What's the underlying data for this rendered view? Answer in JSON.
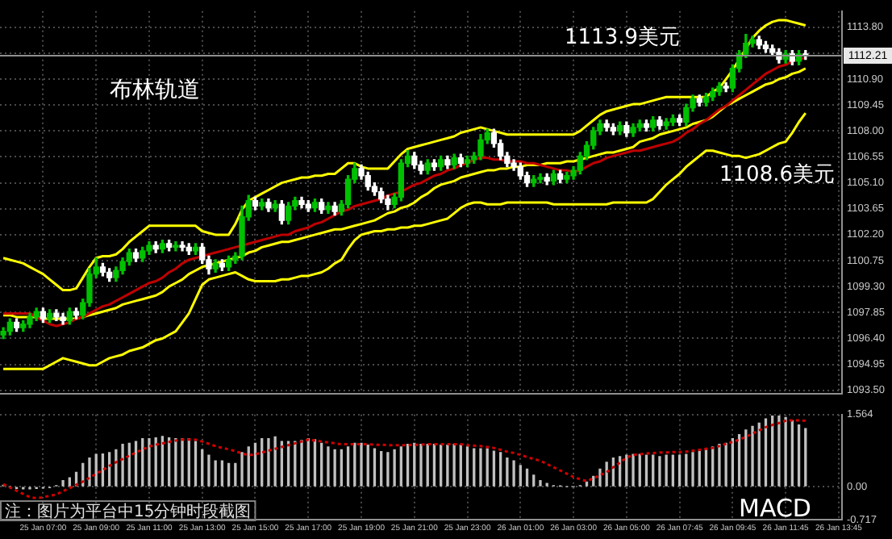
{
  "chart_data": [
    {
      "type": "candlestick",
      "tick_labels": "y",
      "grid": true,
      "categories": [
        null,
        null,
        null,
        null,
        null,
        null,
        null,
        null,
        null,
        null,
        null,
        null,
        null,
        null,
        null,
        null,
        null,
        null,
        null,
        null,
        null,
        null,
        null,
        null,
        null,
        null,
        null,
        null,
        null,
        null,
        null,
        null,
        null,
        null,
        null,
        null,
        null,
        null,
        null,
        null,
        null,
        null,
        null,
        null,
        null,
        null,
        null,
        null,
        null,
        null,
        null,
        null,
        null,
        null,
        null,
        null,
        null,
        null,
        null,
        null,
        null,
        null,
        null,
        null,
        null,
        null,
        null,
        null,
        null,
        null,
        null,
        null,
        null,
        null,
        null,
        null,
        null,
        null,
        null,
        null,
        null,
        null,
        null,
        null,
        null,
        null,
        null,
        null,
        null,
        null,
        null,
        null,
        null,
        null,
        null,
        null,
        null,
        null,
        null,
        null,
        null,
        null,
        null,
        null,
        null,
        null,
        null,
        null,
        null,
        null,
        null,
        null,
        null,
        null,
        null,
        null,
        null,
        null,
        null,
        null,
        null,
        null,
        null,
        null,
        null,
        null,
        null
      ],
      "ohlc": [
        [
          1096.6,
          1097.0,
          1096.4,
          1096.8
        ],
        [
          1096.8,
          1097.5,
          1096.6,
          1097.3
        ],
        [
          1097.3,
          1097.5,
          1096.8,
          1097.0
        ],
        [
          1097.0,
          1097.4,
          1096.8,
          1097.2
        ],
        [
          1097.2,
          1097.8,
          1097.0,
          1097.6
        ],
        [
          1097.6,
          1098.1,
          1097.4,
          1097.9
        ],
        [
          1097.9,
          1098.1,
          1097.3,
          1097.5
        ],
        [
          1097.5,
          1098.0,
          1097.3,
          1097.8
        ],
        [
          1097.8,
          1098.0,
          1097.4,
          1097.6
        ],
        [
          1097.6,
          1097.8,
          1097.2,
          1097.4
        ],
        [
          1097.4,
          1098.1,
          1097.2,
          1097.9
        ],
        [
          1097.9,
          1098.1,
          1097.5,
          1097.7
        ],
        [
          1097.7,
          1098.6,
          1097.5,
          1098.4
        ],
        [
          1098.4,
          1100.3,
          1098.2,
          1100.0
        ],
        [
          1100.0,
          1100.9,
          1099.8,
          1100.4
        ],
        [
          1100.4,
          1100.6,
          1099.9,
          1100.1
        ],
        [
          1100.1,
          1100.3,
          1099.6,
          1099.8
        ],
        [
          1099.8,
          1100.4,
          1099.6,
          1100.2
        ],
        [
          1100.2,
          1100.9,
          1100.0,
          1100.7
        ],
        [
          1100.7,
          1101.4,
          1100.5,
          1101.2
        ],
        [
          1101.2,
          1101.4,
          1100.7,
          1100.9
        ],
        [
          1100.9,
          1101.5,
          1100.7,
          1101.3
        ],
        [
          1101.3,
          1101.8,
          1101.1,
          1101.6
        ],
        [
          1101.6,
          1101.8,
          1101.2,
          1101.4
        ],
        [
          1101.4,
          1101.9,
          1101.2,
          1101.7
        ],
        [
          1101.7,
          1101.9,
          1101.3,
          1101.5
        ],
        [
          1101.5,
          1101.8,
          1101.3,
          1101.6
        ],
        [
          1101.6,
          1101.8,
          1101.3,
          1101.5
        ],
        [
          1101.5,
          1101.7,
          1101.1,
          1101.3
        ],
        [
          1101.3,
          1101.7,
          1101.1,
          1101.5
        ],
        [
          1101.5,
          1101.7,
          1100.6,
          1100.8
        ],
        [
          1100.8,
          1101.0,
          1100.0,
          1100.3
        ],
        [
          1100.3,
          1100.8,
          1100.1,
          1100.6
        ],
        [
          1100.6,
          1100.8,
          1100.2,
          1100.4
        ],
        [
          1100.4,
          1101.0,
          1100.2,
          1100.8
        ],
        [
          1100.8,
          1101.2,
          1100.6,
          1101.0
        ],
        [
          1101.0,
          1103.8,
          1100.8,
          1103.2
        ],
        [
          1103.2,
          1104.4,
          1103.0,
          1104.1
        ],
        [
          1104.1,
          1104.3,
          1103.6,
          1103.8
        ],
        [
          1103.8,
          1104.2,
          1103.6,
          1104.0
        ],
        [
          1104.0,
          1104.2,
          1103.5,
          1103.7
        ],
        [
          1103.7,
          1104.1,
          1103.5,
          1103.9
        ],
        [
          1103.9,
          1104.1,
          1102.8,
          1103.0
        ],
        [
          1103.0,
          1104.0,
          1102.8,
          1103.8
        ],
        [
          1103.8,
          1104.3,
          1103.6,
          1104.1
        ],
        [
          1104.1,
          1104.3,
          1103.7,
          1103.9
        ],
        [
          1103.9,
          1104.1,
          1103.5,
          1103.7
        ],
        [
          1103.7,
          1104.2,
          1103.5,
          1104.0
        ],
        [
          1104.0,
          1104.2,
          1103.4,
          1103.6
        ],
        [
          1103.6,
          1104.0,
          1103.4,
          1103.8
        ],
        [
          1103.8,
          1104.0,
          1103.3,
          1103.5
        ],
        [
          1103.5,
          1104.1,
          1103.3,
          1103.9
        ],
        [
          1103.9,
          1105.5,
          1103.7,
          1105.3
        ],
        [
          1105.3,
          1106.2,
          1105.1,
          1105.9
        ],
        [
          1105.9,
          1106.1,
          1105.3,
          1105.5
        ],
        [
          1105.5,
          1105.7,
          1104.7,
          1104.9
        ],
        [
          1104.9,
          1105.1,
          1104.4,
          1104.6
        ],
        [
          1104.6,
          1104.8,
          1104.0,
          1104.2
        ],
        [
          1104.2,
          1104.4,
          1103.6,
          1103.9
        ],
        [
          1103.9,
          1104.5,
          1103.7,
          1104.3
        ],
        [
          1104.3,
          1106.4,
          1104.1,
          1106.2
        ],
        [
          1106.2,
          1106.9,
          1106.0,
          1106.6
        ],
        [
          1106.6,
          1106.8,
          1105.9,
          1106.1
        ],
        [
          1106.1,
          1106.3,
          1105.6,
          1105.8
        ],
        [
          1105.8,
          1106.4,
          1105.6,
          1106.2
        ],
        [
          1106.2,
          1106.4,
          1105.8,
          1106.0
        ],
        [
          1106.0,
          1106.6,
          1105.8,
          1106.4
        ],
        [
          1106.4,
          1106.6,
          1105.9,
          1106.1
        ],
        [
          1106.1,
          1106.7,
          1105.9,
          1106.5
        ],
        [
          1106.5,
          1106.7,
          1106.0,
          1106.2
        ],
        [
          1106.2,
          1106.6,
          1106.0,
          1106.4
        ],
        [
          1106.4,
          1106.8,
          1106.2,
          1106.6
        ],
        [
          1106.6,
          1107.8,
          1106.4,
          1107.5
        ],
        [
          1107.5,
          1108.1,
          1107.3,
          1107.9
        ],
        [
          1107.9,
          1108.1,
          1107.1,
          1107.3
        ],
        [
          1107.3,
          1107.5,
          1106.4,
          1106.6
        ],
        [
          1106.6,
          1106.8,
          1106.0,
          1106.2
        ],
        [
          1106.2,
          1106.4,
          1105.8,
          1106.0
        ],
        [
          1106.0,
          1106.2,
          1105.3,
          1105.5
        ],
        [
          1105.5,
          1105.7,
          1104.9,
          1105.1
        ],
        [
          1105.1,
          1105.5,
          1104.9,
          1105.3
        ],
        [
          1105.3,
          1105.6,
          1105.1,
          1105.4
        ],
        [
          1105.4,
          1105.6,
          1105.0,
          1105.2
        ],
        [
          1105.2,
          1105.8,
          1105.0,
          1105.6
        ],
        [
          1105.6,
          1105.8,
          1105.1,
          1105.3
        ],
        [
          1105.3,
          1105.7,
          1105.1,
          1105.5
        ],
        [
          1105.5,
          1106.0,
          1105.3,
          1105.8
        ],
        [
          1105.8,
          1106.8,
          1105.6,
          1106.6
        ],
        [
          1106.6,
          1107.4,
          1106.4,
          1107.2
        ],
        [
          1107.2,
          1108.2,
          1107.0,
          1108.0
        ],
        [
          1108.0,
          1108.6,
          1107.8,
          1108.4
        ],
        [
          1108.4,
          1108.6,
          1108.0,
          1108.2
        ],
        [
          1108.2,
          1108.4,
          1107.8,
          1108.0
        ],
        [
          1108.0,
          1108.5,
          1107.8,
          1108.3
        ],
        [
          1108.3,
          1108.5,
          1107.7,
          1107.9
        ],
        [
          1107.9,
          1108.4,
          1107.7,
          1108.2
        ],
        [
          1108.2,
          1108.6,
          1108.0,
          1108.4
        ],
        [
          1108.4,
          1108.6,
          1108.0,
          1108.2
        ],
        [
          1108.2,
          1108.8,
          1108.0,
          1108.6
        ],
        [
          1108.6,
          1108.8,
          1108.1,
          1108.3
        ],
        [
          1108.3,
          1108.7,
          1108.1,
          1108.5
        ],
        [
          1108.5,
          1108.9,
          1108.3,
          1108.7
        ],
        [
          1108.7,
          1108.9,
          1108.3,
          1108.5
        ],
        [
          1108.5,
          1109.5,
          1108.3,
          1109.3
        ],
        [
          1109.3,
          1110.0,
          1109.1,
          1109.8
        ],
        [
          1109.8,
          1110.0,
          1109.4,
          1109.6
        ],
        [
          1109.6,
          1110.1,
          1109.4,
          1109.9
        ],
        [
          1109.9,
          1110.4,
          1109.7,
          1110.2
        ],
        [
          1110.2,
          1110.7,
          1110.0,
          1110.5
        ],
        [
          1110.5,
          1110.7,
          1110.2,
          1110.4
        ],
        [
          1110.4,
          1111.7,
          1110.2,
          1111.5
        ],
        [
          1111.5,
          1112.5,
          1111.3,
          1112.3
        ],
        [
          1112.3,
          1113.4,
          1112.1,
          1112.9
        ],
        [
          1112.9,
          1113.3,
          1112.7,
          1113.1
        ],
        [
          1113.1,
          1113.3,
          1112.6,
          1112.8
        ],
        [
          1112.8,
          1113.0,
          1112.4,
          1112.6
        ],
        [
          1112.6,
          1112.8,
          1112.2,
          1112.4
        ],
        [
          1112.4,
          1112.6,
          1111.8,
          1112.0
        ],
        [
          1112.0,
          1112.5,
          1111.8,
          1112.3
        ],
        [
          1112.3,
          1112.5,
          1111.7,
          1111.9
        ],
        [
          1111.9,
          1112.5,
          1111.7,
          1112.3
        ],
        [
          1112.3,
          1112.5,
          1112.0,
          1112.2
        ],
        null,
        null,
        null,
        null,
        null
      ],
      "colors": [
        "#00c000",
        "#00c000",
        "#ffffff",
        "#00c000",
        "#00c000",
        "#00c000",
        "#ffffff",
        "#00c000",
        "#ffffff",
        "#ffffff",
        "#00c000",
        "#ffffff",
        "#00c000",
        "#00c000",
        "#00c000",
        "#ffffff",
        "#ffffff",
        "#00c000",
        "#00c000",
        "#00c000",
        "#ffffff",
        "#00c000",
        "#00c000",
        "#ffffff",
        "#00c000",
        "#ffffff",
        "#00c000",
        "#ffffff",
        "#ffffff",
        "#00c000",
        "#ffffff",
        "#ffffff",
        "#00c000",
        "#ffffff",
        "#00c000",
        "#00c000",
        "#00c000",
        "#00c000",
        "#ffffff",
        "#00c000",
        "#ffffff",
        "#00c000",
        "#ffffff",
        "#00c000",
        "#00c000",
        "#ffffff",
        "#ffffff",
        "#00c000",
        "#ffffff",
        "#00c000",
        "#ffffff",
        "#00c000",
        "#00c000",
        "#00c000",
        "#ffffff",
        "#ffffff",
        "#ffffff",
        "#ffffff",
        "#ffffff",
        "#00c000",
        "#00c000",
        "#00c000",
        "#ffffff",
        "#ffffff",
        "#00c000",
        "#ffffff",
        "#00c000",
        "#ffffff",
        "#00c000",
        "#ffffff",
        "#00c000",
        "#00c000",
        "#00c000",
        "#00c000",
        "#ffffff",
        "#ffffff",
        "#ffffff",
        "#ffffff",
        "#ffffff",
        "#ffffff",
        "#00c000",
        "#00c000",
        "#ffffff",
        "#00c000",
        "#ffffff",
        "#00c000",
        "#00c000",
        "#00c000",
        "#00c000",
        "#00c000",
        "#00c000",
        "#ffffff",
        "#ffffff",
        "#00c000",
        "#ffffff",
        "#00c000",
        "#00c000",
        "#ffffff",
        "#00c000",
        "#ffffff",
        "#00c000",
        "#00c000",
        "#ffffff",
        "#00c000",
        "#00c000",
        "#ffffff",
        "#00c000",
        "#00c000",
        "#00c000",
        "#ffffff",
        "#00c000",
        "#00c000",
        "#00c000",
        "#00c000",
        "#ffffff",
        "#ffffff",
        "#ffffff",
        "#ffffff",
        "#00c000",
        "#ffffff",
        "#00c000",
        "#ffffff",
        null,
        null,
        null,
        null,
        null
      ],
      "series": [
        {
          "type": "line",
          "color": "#ffff00",
          "values": [
            1100.9,
            1100.8,
            1100.7,
            1100.6,
            1100.4,
            1100.2,
            1100.0,
            1099.7,
            1099.4,
            1099.1,
            1099.1,
            1099.2,
            1099.8,
            1100.4,
            1100.9,
            1101.0,
            1101.0,
            1101.1,
            1101.4,
            1101.8,
            1102.1,
            1102.4,
            1102.7,
            1102.7,
            1102.7,
            1102.7,
            1102.7,
            1102.7,
            1102.7,
            1102.7,
            1102.4,
            1102.3,
            1102.2,
            1102.2,
            1102.2,
            1102.8,
            1103.6,
            1104.1,
            1104.3,
            1104.5,
            1104.7,
            1104.9,
            1105.1,
            1105.2,
            1105.3,
            1105.4,
            1105.4,
            1105.5,
            1105.5,
            1105.6,
            1105.6,
            1105.9,
            1106.2,
            1106.2,
            1106.0,
            1105.9,
            1105.9,
            1105.9,
            1105.9,
            1106.3,
            1106.7,
            1107.0,
            1107.1,
            1107.2,
            1107.3,
            1107.4,
            1107.5,
            1107.6,
            1107.7,
            1107.9,
            1108.0,
            1108.1,
            1108.2,
            1108.1,
            1108.0,
            1107.9,
            1107.8,
            1107.8,
            1107.8,
            1107.8,
            1107.8,
            1107.8,
            1107.8,
            1107.8,
            1107.8,
            1107.8,
            1107.8,
            1108.0,
            1108.3,
            1108.6,
            1108.9,
            1109.1,
            1109.2,
            1109.3,
            1109.4,
            1109.5,
            1109.5,
            1109.6,
            1109.7,
            1109.8,
            1109.9,
            1109.9,
            1109.9,
            1109.9,
            1109.9,
            1109.9,
            1109.9,
            1110.2,
            1110.4,
            1110.9,
            1111.4,
            1112.0,
            1112.6,
            1113.2,
            1113.6,
            1113.9,
            1114.1,
            1114.2,
            1114.2,
            1114.1,
            1114.0,
            1113.9,
            null,
            null,
            null,
            null,
            null
          ]
        },
        {
          "type": "line",
          "color": "#c00000",
          "values": [
            1097.8,
            1097.8,
            1097.8,
            1097.8,
            1097.8,
            1097.6,
            1097.4,
            1097.2,
            1097.1,
            1097.2,
            1097.3,
            1097.5,
            1097.6,
            1097.8,
            1098.0,
            1098.2,
            1098.3,
            1098.5,
            1098.7,
            1098.9,
            1099.1,
            1099.3,
            1099.5,
            1099.6,
            1099.8,
            1100.1,
            1100.3,
            1100.6,
            1100.8,
            1100.9,
            1101.0,
            1101.1,
            1101.2,
            1101.3,
            1101.4,
            1101.5,
            1101.6,
            1101.7,
            1101.8,
            1101.9,
            1102.0,
            1102.1,
            1102.2,
            1102.2,
            1102.4,
            1102.5,
            1102.6,
            1102.8,
            1102.9,
            1103.1,
            1103.3,
            1103.5,
            1103.6,
            1103.8,
            1103.9,
            1104.0,
            1104.1,
            1104.2,
            1104.4,
            1104.5,
            1104.6,
            1104.8,
            1105.0,
            1105.1,
            1105.3,
            1105.5,
            1105.6,
            1105.8,
            1105.9,
            1106.1,
            1106.2,
            1106.4,
            1106.5,
            1106.5,
            1106.4,
            1106.4,
            1106.3,
            1106.3,
            1106.3,
            1106.2,
            1106.2,
            1106.1,
            1106.0,
            1105.9,
            1105.8,
            1105.8,
            1105.7,
            1105.8,
            1106.0,
            1106.2,
            1106.3,
            1106.5,
            1106.6,
            1106.7,
            1106.8,
            1106.9,
            1106.9,
            1107.0,
            1107.1,
            1107.2,
            1107.3,
            1107.4,
            1107.6,
            1107.9,
            1108.1,
            1108.4,
            1108.6,
            1108.9,
            1109.2,
            1109.4,
            1109.7,
            1110.0,
            1110.3,
            1110.6,
            1110.9,
            1111.2,
            1111.4,
            1111.6,
            1111.7,
            1111.9,
            1112.0,
            1112.1,
            null,
            null,
            null,
            null,
            null
          ]
        },
        {
          "type": "line",
          "color": "#ffff00",
          "values": [
            1097.7,
            1097.7,
            1097.6,
            1097.6,
            1097.6,
            1097.6,
            1097.5,
            1097.5,
            1097.5,
            1097.5,
            1097.5,
            1097.5,
            1097.6,
            1097.7,
            1097.8,
            1097.9,
            1098.0,
            1098.1,
            1098.3,
            1098.4,
            1098.5,
            1098.6,
            1098.7,
            1098.8,
            1099.0,
            1099.3,
            1099.5,
            1099.7,
            1100.0,
            1100.2,
            1100.4,
            1100.5,
            1100.6,
            1100.7,
            1100.8,
            1100.9,
            1101.0,
            1101.2,
            1101.3,
            1101.5,
            1101.6,
            1101.7,
            1101.8,
            1101.8,
            1101.9,
            1102.0,
            1102.1,
            1102.2,
            1102.3,
            1102.4,
            1102.5,
            1102.5,
            1102.6,
            1102.7,
            1102.8,
            1102.9,
            1103.0,
            1103.2,
            1103.4,
            1103.5,
            1103.7,
            1103.8,
            1104.0,
            1104.3,
            1104.5,
            1104.8,
            1105.0,
            1105.1,
            1105.2,
            1105.4,
            1105.5,
            1105.6,
            1105.7,
            1105.8,
            1105.8,
            1105.9,
            1105.9,
            1106.0,
            1106.0,
            1106.1,
            1106.1,
            1106.1,
            1106.2,
            1106.2,
            1106.2,
            1106.3,
            1106.3,
            1106.4,
            1106.5,
            1106.6,
            1106.7,
            1106.8,
            1106.8,
            1106.9,
            1107.0,
            1107.1,
            1107.4,
            1107.5,
            1107.6,
            1107.8,
            1107.9,
            1108.0,
            1108.1,
            1108.2,
            1108.4,
            1108.5,
            1108.6,
            1108.8,
            1109.1,
            1109.4,
            1109.6,
            1109.8,
            1110.0,
            1110.2,
            1110.4,
            1110.6,
            1110.7,
            1110.9,
            1111.0,
            1111.2,
            1111.3,
            1111.5,
            null,
            null,
            null,
            null,
            null
          ]
        },
        {
          "type": "line",
          "color": "#ffff00",
          "values": [
            1094.7,
            1094.7,
            1094.7,
            1094.7,
            1094.7,
            1094.7,
            1094.7,
            1094.9,
            1095.1,
            1095.3,
            1095.2,
            1095.1,
            1095.0,
            1094.9,
            1094.9,
            1095.1,
            1095.3,
            1095.4,
            1095.5,
            1095.7,
            1095.8,
            1095.9,
            1096.1,
            1096.3,
            1096.4,
            1096.6,
            1096.8,
            1097.3,
            1097.8,
            1098.6,
            1099.4,
            1099.7,
            1099.8,
            1099.9,
            1100.0,
            1100.1,
            1099.9,
            1099.7,
            1099.6,
            1099.6,
            1099.6,
            1099.6,
            1099.7,
            1099.7,
            1099.8,
            1099.9,
            1099.9,
            1100.0,
            1100.1,
            1100.3,
            1100.6,
            1100.8,
            1101.4,
            1101.9,
            1102.2,
            1102.3,
            1102.4,
            1102.4,
            1102.5,
            1102.5,
            1102.6,
            1102.6,
            1102.7,
            1102.7,
            1102.8,
            1102.9,
            1103.0,
            1103.1,
            1103.4,
            1103.7,
            1103.9,
            1104.0,
            1104.0,
            1103.9,
            1103.9,
            1103.9,
            1104.0,
            1104.0,
            1104.0,
            1104.0,
            1104.0,
            1104.0,
            1104.0,
            1103.9,
            1103.9,
            1103.9,
            1103.9,
            1103.9,
            1103.9,
            1103.9,
            1103.9,
            1103.9,
            1104.0,
            1104.0,
            1104.0,
            1104.0,
            1104.0,
            1104.0,
            1104.2,
            1104.6,
            1105.0,
            1105.3,
            1105.6,
            1106.0,
            1106.3,
            1106.6,
            1106.9,
            1106.9,
            1106.8,
            1106.7,
            1106.6,
            1106.6,
            1106.5,
            1106.6,
            1106.7,
            1106.9,
            1107.1,
            1107.3,
            1107.4,
            1107.9,
            1108.5,
            1109.0,
            null,
            null,
            null,
            null,
            null
          ]
        }
      ],
      "ylim": [
        1093.3,
        1114.7
      ],
      "yticks": [
        {
          "value": 1113.8,
          "label": "1113.80"
        },
        {
          "value": 1112.35,
          "label": null
        },
        {
          "value": 1110.9,
          "label": "1110.90"
        },
        {
          "value": 1109.45,
          "label": "1109.45"
        },
        {
          "value": 1108,
          "label": "1108.00"
        },
        {
          "value": 1106.55,
          "label": "1106.55"
        },
        {
          "value": 1105.1,
          "label": "1105.10"
        },
        {
          "value": 1103.65,
          "label": "1103.65"
        },
        {
          "value": 1102.2,
          "label": "1102.20"
        },
        {
          "value": 1100.75,
          "label": "1100.75"
        },
        {
          "value": 1099.3,
          "label": "1099.30"
        },
        {
          "value": 1097.85,
          "label": "1097.85"
        },
        {
          "value": 1096.4,
          "label": "1096.40"
        },
        {
          "value": 1094.95,
          "label": "1094.95"
        },
        {
          "value": 1093.5,
          "label": "1093.50"
        }
      ],
      "ref_lines": [
        {
          "axis": "y",
          "value": 1112.21,
          "label": "1112.21",
          "color": "#909090"
        }
      ],
      "annotations": [
        "布林轨道",
        "1113.9美元",
        "1108.6美元"
      ]
    },
    {
      "type": "bar",
      "grid": true,
      "categories": [
        null,
        null,
        null,
        null,
        null,
        null,
        "25 Jan 07:00",
        null,
        null,
        null,
        null,
        null,
        null,
        null,
        "25 Jan 09:00",
        null,
        null,
        null,
        null,
        null,
        null,
        null,
        "25 Jan 11:00",
        null,
        null,
        null,
        null,
        null,
        null,
        null,
        "25 Jan 13:00",
        null,
        null,
        null,
        null,
        null,
        null,
        null,
        "25 Jan 15:00",
        null,
        null,
        null,
        null,
        null,
        null,
        null,
        "25 Jan 17:00",
        null,
        null,
        null,
        null,
        null,
        null,
        null,
        "25 Jan 19:00",
        null,
        null,
        null,
        null,
        null,
        null,
        null,
        "25 Jan 21:00",
        null,
        null,
        null,
        null,
        null,
        null,
        null,
        "25 Jan 23:00",
        null,
        null,
        null,
        null,
        null,
        null,
        null,
        "26 Jan 01:00",
        null,
        null,
        null,
        null,
        null,
        null,
        null,
        "26 Jan 03:00",
        null,
        null,
        null,
        null,
        null,
        null,
        null,
        "26 Jan 05:00",
        null,
        null,
        null,
        null,
        null,
        null,
        null,
        "26 Jan 07:45",
        null,
        null,
        null,
        null,
        null,
        null,
        null,
        "26 Jan 09:45",
        null,
        null,
        null,
        null,
        null,
        null,
        null,
        "26 Jan 11:45",
        null,
        null,
        null,
        null,
        null,
        null,
        null,
        "26 Jan 13:45"
      ],
      "series": [
        {
          "type": "bar",
          "color": "#c0c0c0",
          "values": [
            0.03,
            0.0,
            -0.04,
            -0.05,
            -0.05,
            -0.04,
            -0.03,
            -0.02,
            0.02,
            0.13,
            0.19,
            0.31,
            0.5,
            0.62,
            0.7,
            0.71,
            0.74,
            0.8,
            0.92,
            0.94,
            0.98,
            1.04,
            1.04,
            1.06,
            1.09,
            1.06,
            1.04,
            1.04,
            1.04,
            0.98,
            0.8,
            0.68,
            0.56,
            0.56,
            0.5,
            0.5,
            0.74,
            0.86,
            0.94,
            1.04,
            1.04,
            1.08,
            0.98,
            0.98,
            0.98,
            1.0,
            1.04,
            1.02,
            0.94,
            0.86,
            0.8,
            0.8,
            0.86,
            0.94,
            0.94,
            0.9,
            0.82,
            0.76,
            0.74,
            0.8,
            0.86,
            0.92,
            0.94,
            0.92,
            0.92,
            0.92,
            0.9,
            0.9,
            0.92,
            0.9,
            0.86,
            0.82,
            0.82,
            0.82,
            0.77,
            0.74,
            0.62,
            0.56,
            0.46,
            0.38,
            0.25,
            0.13,
            0.07,
            0.02,
            0.01,
            0.0,
            0.0,
            0.02,
            0.1,
            0.22,
            0.38,
            0.53,
            0.62,
            0.65,
            0.68,
            0.7,
            0.7,
            0.68,
            0.68,
            0.65,
            0.68,
            0.68,
            0.68,
            0.7,
            0.74,
            0.77,
            0.82,
            0.86,
            0.92,
            0.94,
            1.04,
            1.13,
            1.23,
            1.31,
            1.38,
            1.47,
            1.53,
            1.53,
            1.5,
            1.43,
            1.34,
            1.26,
            null,
            null,
            null,
            null,
            null
          ]
        },
        {
          "type": "line",
          "color": "#d00000",
          "line_style": "dotted",
          "values": [
            0.05,
            -0.02,
            -0.09,
            -0.16,
            -0.23,
            -0.25,
            -0.23,
            -0.2,
            -0.17,
            -0.1,
            -0.03,
            0.04,
            0.11,
            0.19,
            0.28,
            0.36,
            0.45,
            0.53,
            0.6,
            0.67,
            0.74,
            0.81,
            0.87,
            0.91,
            0.94,
            0.97,
            1.0,
            1.02,
            1.02,
            1.02,
            0.98,
            0.93,
            0.88,
            0.84,
            0.81,
            0.77,
            0.72,
            0.68,
            0.7,
            0.74,
            0.78,
            0.82,
            0.86,
            0.9,
            0.94,
            0.98,
            1.02,
            1.0,
            0.98,
            0.96,
            0.94,
            0.92,
            0.92,
            0.92,
            0.92,
            0.92,
            0.91,
            0.91,
            0.9,
            0.9,
            0.9,
            0.9,
            0.91,
            0.91,
            0.92,
            0.92,
            0.92,
            0.92,
            0.92,
            0.92,
            0.9,
            0.89,
            0.88,
            0.86,
            0.84,
            0.8,
            0.76,
            0.73,
            0.69,
            0.64,
            0.6,
            0.56,
            0.49,
            0.42,
            0.35,
            0.28,
            0.21,
            0.16,
            0.12,
            0.18,
            0.25,
            0.31,
            0.42,
            0.52,
            0.63,
            0.69,
            0.7,
            0.72,
            0.73,
            0.74,
            0.74,
            0.75,
            0.75,
            0.76,
            0.78,
            0.8,
            0.82,
            0.84,
            0.88,
            0.93,
            0.97,
            1.02,
            1.08,
            1.15,
            1.22,
            1.29,
            1.34,
            1.38,
            1.43,
            1.44,
            1.44,
            1.43,
            null,
            null,
            null,
            null,
            null
          ]
        }
      ],
      "ylim": [
        -0.717,
        1.564
      ],
      "yticks": [
        1.564,
        {
          "value": 0,
          "label": "0.00"
        },
        -0.717
      ],
      "annotations": [
        "MACD",
        "注：图片为平台中15分钟时段截图"
      ]
    }
  ]
}
